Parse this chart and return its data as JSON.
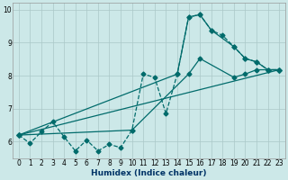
{
  "xlabel": "Humidex (Indice chaleur)",
  "background_color": "#cce8e8",
  "grid_color": "#aac8c8",
  "line_color": "#006b6b",
  "xlim": [
    -0.5,
    23.5
  ],
  "ylim": [
    5.5,
    10.2
  ],
  "yticks": [
    6,
    7,
    8,
    9,
    10
  ],
  "xticks": [
    0,
    1,
    2,
    3,
    4,
    5,
    6,
    7,
    8,
    9,
    10,
    11,
    12,
    13,
    14,
    15,
    16,
    17,
    18,
    19,
    20,
    21,
    22,
    23
  ],
  "series_dashed": {
    "x": [
      0,
      1,
      2,
      3,
      4,
      5,
      6,
      7,
      8,
      9,
      10,
      11,
      12,
      13,
      14,
      15,
      16,
      17,
      18,
      19,
      20,
      21,
      22,
      23
    ],
    "y": [
      6.2,
      5.95,
      6.3,
      6.6,
      6.15,
      5.72,
      6.05,
      5.72,
      5.92,
      5.82,
      6.35,
      8.05,
      7.95,
      6.85,
      8.05,
      9.78,
      9.85,
      9.38,
      9.22,
      8.88,
      8.52,
      8.42,
      8.18,
      8.18
    ],
    "marker": "D",
    "markersize": 2.5,
    "linewidth": 0.9,
    "linestyle": "--"
  },
  "series_peak": {
    "x": [
      0,
      14,
      15,
      16,
      17,
      19,
      20,
      21,
      22,
      23
    ],
    "y": [
      6.2,
      8.05,
      9.78,
      9.85,
      9.38,
      8.88,
      8.52,
      8.42,
      8.18,
      8.18
    ],
    "marker": "D",
    "markersize": 2.5,
    "linewidth": 0.9,
    "linestyle": "-"
  },
  "series_straight": {
    "x": [
      0,
      23
    ],
    "y": [
      6.2,
      8.18
    ],
    "marker": "D",
    "markersize": 2.5,
    "linewidth": 0.9,
    "linestyle": "-"
  },
  "series_mid": {
    "x": [
      0,
      10,
      15,
      16,
      19,
      20,
      21,
      22,
      23
    ],
    "y": [
      6.2,
      6.35,
      8.05,
      8.52,
      7.95,
      8.05,
      8.18,
      8.18,
      8.18
    ],
    "marker": "D",
    "markersize": 2.5,
    "linewidth": 0.9,
    "linestyle": "-"
  }
}
